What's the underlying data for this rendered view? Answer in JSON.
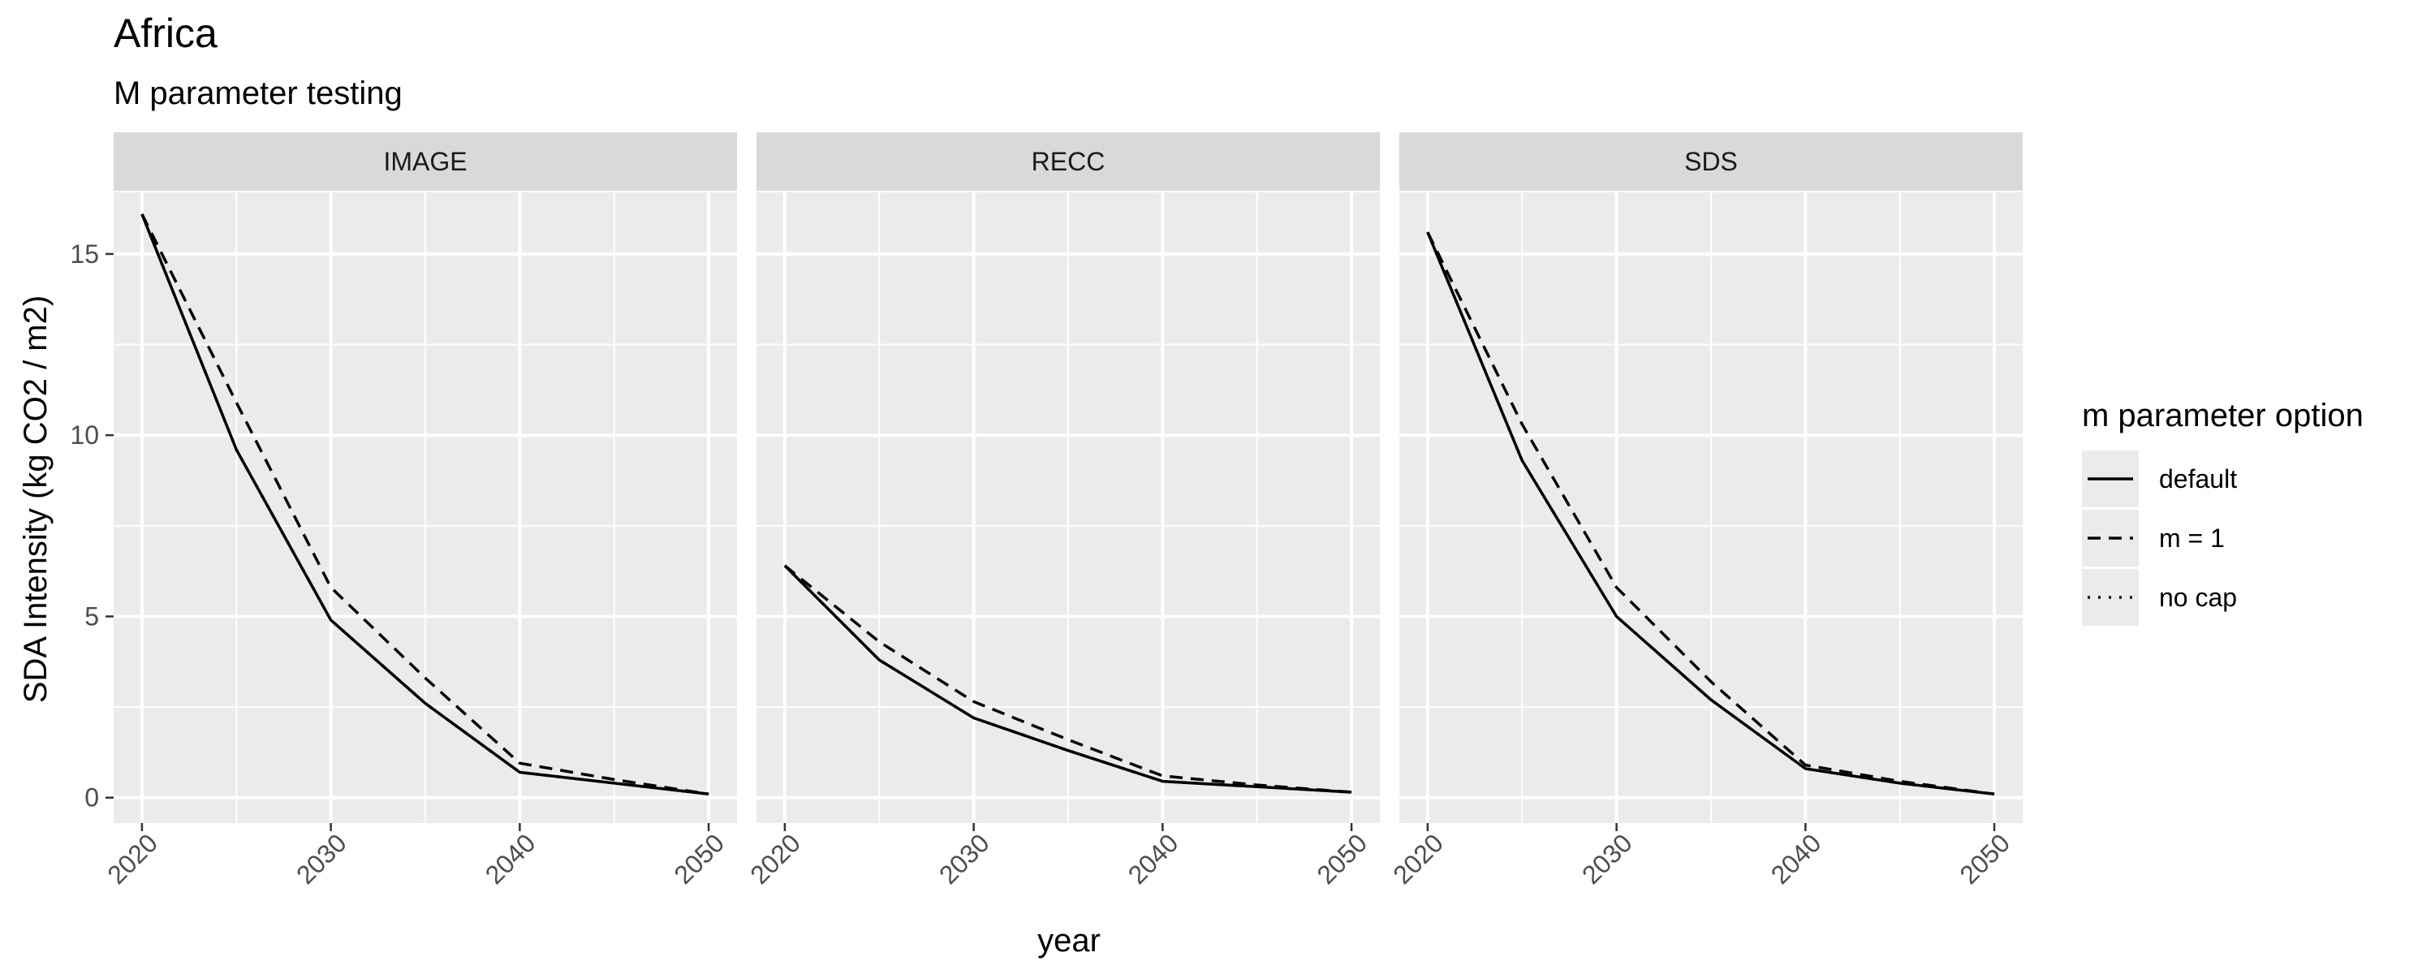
{
  "chart_data": {
    "type": "line",
    "title": "Africa",
    "subtitle": "M parameter testing",
    "xlabel": "year",
    "ylabel": "SDA Intensity (kg CO2 / m2)",
    "xlim": [
      2018.5,
      2051.5
    ],
    "ylim": [
      -0.7,
      16.7
    ],
    "x_ticks": [
      2020,
      2030,
      2040,
      2050
    ],
    "y_ticks": [
      0,
      5,
      10,
      15
    ],
    "grid": true,
    "legend": {
      "title": "m parameter option",
      "position": "right",
      "entries": [
        {
          "label": "default",
          "linetype": "solid"
        },
        {
          "label": "m = 1",
          "linetype": "dashed"
        },
        {
          "label": "no cap",
          "linetype": "dotted"
        }
      ]
    },
    "facets": [
      {
        "name": "IMAGE",
        "series": [
          {
            "name": "default",
            "x": [
              2020,
              2025,
              2030,
              2035,
              2040,
              2045,
              2050
            ],
            "y": [
              16.1,
              9.6,
              4.9,
              2.6,
              0.7,
              0.4,
              0.1
            ]
          },
          {
            "name": "m = 1",
            "x": [
              2020,
              2025,
              2030,
              2035,
              2040,
              2045,
              2050
            ],
            "y": [
              16.1,
              10.9,
              5.8,
              3.3,
              0.95,
              0.5,
              0.1
            ]
          },
          {
            "name": "no cap",
            "x": [
              2020,
              2025,
              2030,
              2035,
              2040,
              2045,
              2050
            ],
            "y": [
              16.1,
              9.6,
              4.9,
              2.6,
              0.7,
              0.4,
              0.1
            ]
          }
        ]
      },
      {
        "name": "RECC",
        "series": [
          {
            "name": "default",
            "x": [
              2020,
              2025,
              2030,
              2035,
              2040,
              2045,
              2050
            ],
            "y": [
              6.4,
              3.8,
              2.2,
              1.3,
              0.45,
              0.3,
              0.15
            ]
          },
          {
            "name": "m = 1",
            "x": [
              2020,
              2025,
              2030,
              2035,
              2040,
              2045,
              2050
            ],
            "y": [
              6.4,
              4.3,
              2.65,
              1.6,
              0.6,
              0.35,
              0.15
            ]
          },
          {
            "name": "no cap",
            "x": [
              2020,
              2025,
              2030,
              2035,
              2040,
              2045,
              2050
            ],
            "y": [
              6.4,
              3.8,
              2.2,
              1.3,
              0.45,
              0.3,
              0.15
            ]
          }
        ]
      },
      {
        "name": "SDS",
        "series": [
          {
            "name": "default",
            "x": [
              2020,
              2025,
              2030,
              2035,
              2040,
              2045,
              2050
            ],
            "y": [
              15.6,
              9.3,
              5.0,
              2.7,
              0.8,
              0.4,
              0.1
            ]
          },
          {
            "name": "m = 1",
            "x": [
              2020,
              2025,
              2030,
              2035,
              2040,
              2045,
              2050
            ],
            "y": [
              15.6,
              10.3,
              5.8,
              3.2,
              0.9,
              0.45,
              0.1
            ]
          },
          {
            "name": "no cap",
            "x": [
              2020,
              2025,
              2030,
              2035,
              2040,
              2045,
              2050
            ],
            "y": [
              15.6,
              9.3,
              5.0,
              2.7,
              0.8,
              0.4,
              0.1
            ]
          }
        ]
      }
    ]
  }
}
